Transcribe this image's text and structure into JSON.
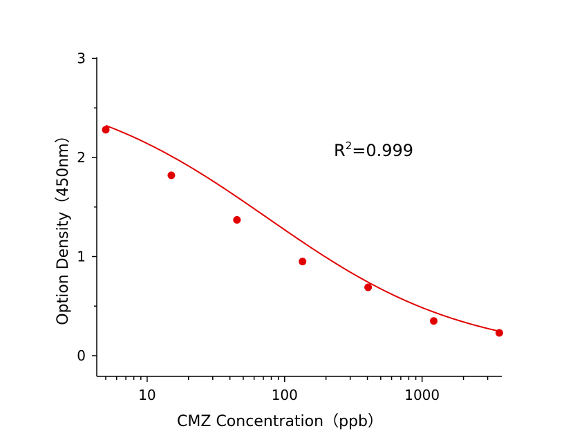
{
  "chart_data": {
    "type": "scatter",
    "title": "",
    "xlabel": "CMZ  Concentration（ppb）",
    "ylabel": "Option Density（450nm）",
    "x_scale": "log",
    "xlim": [
      4.3,
      3800
    ],
    "ylim": [
      -0.2,
      3
    ],
    "x_ticks": [
      10,
      100,
      1000
    ],
    "x_tick_labels": [
      "10",
      "100",
      "1000"
    ],
    "y_ticks": [
      0,
      1,
      2,
      3
    ],
    "y_tick_labels": [
      "0",
      "1",
      "2",
      "3"
    ],
    "grid": false,
    "legend": "none",
    "colors": {
      "series": "#e00000",
      "axis": "#000000"
    },
    "series": [
      {
        "x": [
          5,
          15,
          45,
          135,
          405,
          1215,
          3645
        ],
        "y": [
          2.28,
          1.82,
          1.37,
          0.95,
          0.69,
          0.35,
          0.23
        ]
      }
    ],
    "fit_curve": {
      "model": "four-parameter logistic",
      "top": 2.78,
      "bottom": 0.0,
      "ec50": 75,
      "hill": 0.6
    },
    "annotation": {
      "r_label": "R",
      "r_sup": "2",
      "r_value": "=0.999"
    }
  }
}
